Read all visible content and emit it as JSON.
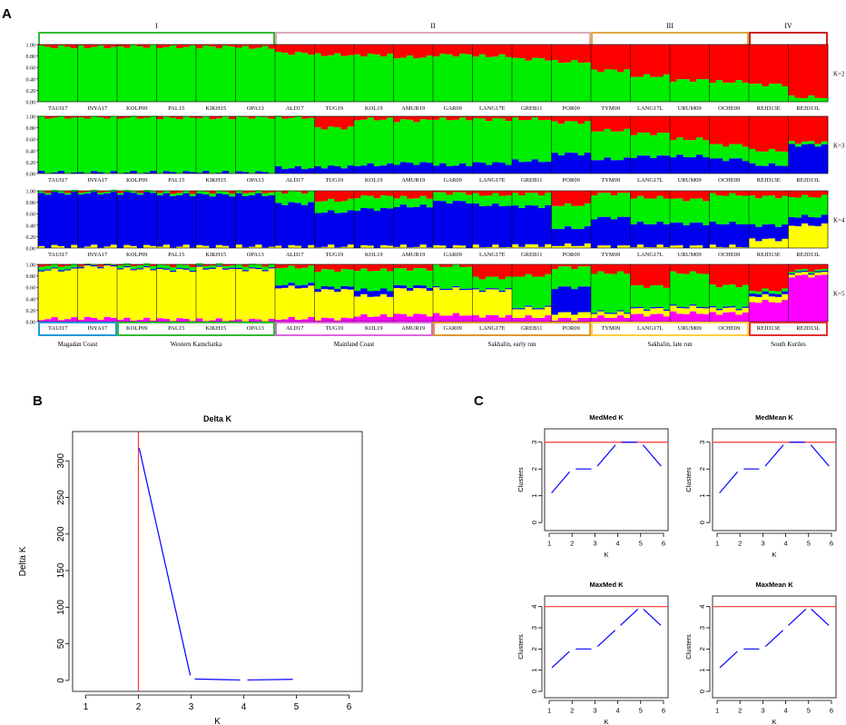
{
  "panels": {
    "a": "A",
    "b": "B",
    "c": "C"
  },
  "colors": {
    "red": "#ff0000",
    "green": "#00ee00",
    "blue": "#0000ee",
    "yellow": "#ffff00",
    "magenta": "#ff00ff",
    "refline": "#ff3333",
    "curve": "#0000ff"
  },
  "structure": {
    "populations": [
      "TAUI17",
      "INYA17",
      "KOLP09",
      "PAL15",
      "KIKH15",
      "OPA13",
      "ALD17",
      "TUG19",
      "KOL19",
      "AMUR19",
      "GAR09",
      "LANG17E",
      "GREB11",
      "POR09",
      "TYM09",
      "LANG17L",
      "URUM09",
      "OCHE09",
      "REJD13E",
      "REJD13L"
    ],
    "yticks": [
      "1.00",
      "0.80",
      "0.60",
      "0.40",
      "0.20",
      "0.00"
    ],
    "k_labels": [
      "K=2",
      "K=3",
      "K=4",
      "K=5"
    ],
    "groups_top": [
      {
        "label": "I",
        "start": 0,
        "end": 6,
        "color": "#33bb33"
      },
      {
        "label": "II",
        "start": 6,
        "end": 14,
        "color": "#ddaabb"
      },
      {
        "label": "III",
        "start": 14,
        "end": 18,
        "color": "#ddaa44"
      },
      {
        "label": "IV",
        "start": 18,
        "end": 20,
        "color": "#cc2222"
      }
    ],
    "groups_bottom": [
      {
        "label": "Magadan Coast",
        "start": 0,
        "end": 2,
        "color": "#2299dd"
      },
      {
        "label": "Western Kamchatka",
        "start": 2,
        "end": 6,
        "color": "#33bb33"
      },
      {
        "label": "Mainland Coast",
        "start": 6,
        "end": 10,
        "color": "#dd66dd"
      },
      {
        "label": "Sakhalin, early run",
        "start": 10,
        "end": 14,
        "color": "#dd9933"
      },
      {
        "label": "Sakhalin, late run",
        "start": 14,
        "end": 18,
        "color": "#ffcc44"
      },
      {
        "label": "South Kuriles",
        "start": 18,
        "end": 20,
        "color": "#dd3333"
      }
    ]
  },
  "chart_data": [
    {
      "type": "bar",
      "title": "K=2",
      "categories": [
        "TAUI17",
        "INYA17",
        "KOLP09",
        "PAL15",
        "KIKH15",
        "OPA13",
        "ALD17",
        "TUG19",
        "KOL19",
        "AMUR19",
        "GAR09",
        "LANG17E",
        "GREB11",
        "POR09",
        "TYM09",
        "LANG17L",
        "URUM09",
        "OCHE09",
        "REJD13E",
        "REJD13L"
      ],
      "series": [
        {
          "color": "#00ee00",
          "values": [
            0.96,
            0.96,
            0.97,
            0.96,
            0.96,
            0.95,
            0.85,
            0.82,
            0.82,
            0.78,
            0.82,
            0.8,
            0.75,
            0.7,
            0.55,
            0.45,
            0.38,
            0.35,
            0.3,
            0.08
          ]
        },
        {
          "color": "#ff0000",
          "values": [
            0.04,
            0.04,
            0.03,
            0.04,
            0.04,
            0.05,
            0.15,
            0.18,
            0.18,
            0.22,
            0.18,
            0.2,
            0.25,
            0.3,
            0.45,
            0.55,
            0.62,
            0.65,
            0.7,
            0.92
          ]
        }
      ]
    },
    {
      "type": "bar",
      "title": "K=3",
      "categories": [
        "TAUI17",
        "INYA17",
        "KOLP09",
        "PAL15",
        "KIKH15",
        "OPA13",
        "ALD17",
        "TUG19",
        "KOL19",
        "AMUR19",
        "GAR09",
        "LANG17E",
        "GREB11",
        "POR09",
        "TYM09",
        "LANG17L",
        "URUM09",
        "OCHE09",
        "REJD13E",
        "REJD13L"
      ],
      "series": [
        {
          "color": "#0000ee",
          "values": [
            0.02,
            0.02,
            0.02,
            0.02,
            0.02,
            0.02,
            0.1,
            0.12,
            0.15,
            0.18,
            0.15,
            0.18,
            0.22,
            0.35,
            0.25,
            0.3,
            0.3,
            0.25,
            0.15,
            0.5
          ]
        },
        {
          "color": "#00ee00",
          "values": [
            0.96,
            0.96,
            0.96,
            0.95,
            0.95,
            0.96,
            0.88,
            0.68,
            0.8,
            0.75,
            0.8,
            0.77,
            0.73,
            0.55,
            0.5,
            0.4,
            0.3,
            0.25,
            0.25,
            0.05
          ]
        },
        {
          "color": "#ff0000",
          "values": [
            0.02,
            0.02,
            0.02,
            0.03,
            0.03,
            0.02,
            0.02,
            0.2,
            0.05,
            0.07,
            0.05,
            0.05,
            0.05,
            0.1,
            0.25,
            0.3,
            0.4,
            0.5,
            0.6,
            0.45
          ]
        }
      ]
    },
    {
      "type": "bar",
      "title": "K=4",
      "categories": [
        "TAUI17",
        "INYA17",
        "KOLP09",
        "PAL15",
        "KIKH15",
        "OPA13",
        "ALD17",
        "TUG19",
        "KOL19",
        "AMUR19",
        "GAR09",
        "LANG17E",
        "GREB11",
        "POR09",
        "TYM09",
        "LANG17L",
        "URUM09",
        "OCHE09",
        "REJD13E",
        "REJD13L"
      ],
      "series": [
        {
          "color": "#ffff00",
          "values": [
            0.03,
            0.03,
            0.03,
            0.03,
            0.03,
            0.03,
            0.03,
            0.03,
            0.03,
            0.03,
            0.03,
            0.03,
            0.05,
            0.05,
            0.03,
            0.03,
            0.03,
            0.03,
            0.15,
            0.4
          ]
        },
        {
          "color": "#0000ee",
          "values": [
            0.93,
            0.93,
            0.93,
            0.9,
            0.9,
            0.9,
            0.75,
            0.6,
            0.65,
            0.7,
            0.78,
            0.72,
            0.68,
            0.3,
            0.5,
            0.4,
            0.4,
            0.4,
            0.25,
            0.15
          ]
        },
        {
          "color": "#00ee00",
          "values": [
            0.03,
            0.03,
            0.03,
            0.04,
            0.05,
            0.05,
            0.2,
            0.2,
            0.22,
            0.15,
            0.15,
            0.18,
            0.22,
            0.4,
            0.42,
            0.45,
            0.42,
            0.5,
            0.5,
            0.35
          ]
        },
        {
          "color": "#ff0000",
          "values": [
            0.01,
            0.01,
            0.01,
            0.03,
            0.02,
            0.02,
            0.02,
            0.17,
            0.1,
            0.12,
            0.04,
            0.07,
            0.05,
            0.25,
            0.05,
            0.12,
            0.15,
            0.07,
            0.1,
            0.1
          ]
        }
      ]
    },
    {
      "type": "bar",
      "title": "K=5",
      "categories": [
        "TAUI17",
        "INYA17",
        "KOLP09",
        "PAL15",
        "KIKH15",
        "OPA13",
        "ALD17",
        "TUG19",
        "KOL19",
        "AMUR19",
        "GAR09",
        "LANG17E",
        "GREB11",
        "POR09",
        "TYM09",
        "LANG17L",
        "URUM09",
        "OCHE09",
        "REJD13E",
        "REJD13L"
      ],
      "series": [
        {
          "color": "#ff00ff",
          "values": [
            0.05,
            0.06,
            0.04,
            0.04,
            0.03,
            0.03,
            0.05,
            0.05,
            0.1,
            0.12,
            0.12,
            0.1,
            0.08,
            0.05,
            0.08,
            0.12,
            0.15,
            0.15,
            0.35,
            0.8
          ]
        },
        {
          "color": "#ffff00",
          "values": [
            0.85,
            0.9,
            0.88,
            0.86,
            0.9,
            0.88,
            0.55,
            0.5,
            0.35,
            0.45,
            0.45,
            0.45,
            0.15,
            0.1,
            0.07,
            0.1,
            0.1,
            0.08,
            0.1,
            0.05
          ]
        },
        {
          "color": "#0000ee",
          "values": [
            0.02,
            0.02,
            0.02,
            0.02,
            0.02,
            0.02,
            0.05,
            0.05,
            0.1,
            0.05,
            0.02,
            0.02,
            0.02,
            0.45,
            0.02,
            0.02,
            0.02,
            0.02,
            0.05,
            0.02
          ]
        },
        {
          "color": "#00ee00",
          "values": [
            0.06,
            0.01,
            0.05,
            0.06,
            0.04,
            0.06,
            0.3,
            0.3,
            0.35,
            0.3,
            0.38,
            0.2,
            0.55,
            0.35,
            0.68,
            0.38,
            0.58,
            0.38,
            0.05,
            0.03
          ]
        },
        {
          "color": "#ff0000",
          "values": [
            0.02,
            0.01,
            0.01,
            0.02,
            0.01,
            0.01,
            0.05,
            0.1,
            0.1,
            0.08,
            0.03,
            0.23,
            0.2,
            0.05,
            0.15,
            0.38,
            0.15,
            0.37,
            0.45,
            0.1
          ]
        }
      ]
    },
    {
      "type": "line",
      "title": "Delta K",
      "xlabel": "K",
      "ylabel": "Delta K",
      "xlim": [
        0.75,
        6.25
      ],
      "ylim": [
        -15,
        340
      ],
      "xticks": [
        1,
        2,
        3,
        4,
        5,
        6
      ],
      "yticks": [
        0,
        50,
        100,
        150,
        200,
        250,
        300
      ],
      "x": [
        2,
        3,
        4,
        5
      ],
      "y": [
        322,
        2,
        0.5,
        1.5
      ],
      "vline": 2
    },
    {
      "type": "line",
      "title": "MedMed K",
      "xlabel": "K",
      "ylabel": "Clusters",
      "xlim": [
        0.8,
        6.2
      ],
      "ylim": [
        -0.3,
        3.5
      ],
      "xticks": [
        1,
        2,
        3,
        4,
        5,
        6
      ],
      "yticks": [
        0,
        1,
        2,
        3
      ],
      "x": [
        1,
        2,
        3,
        4,
        5,
        6
      ],
      "y": [
        1,
        2,
        2,
        3,
        3,
        2
      ],
      "hline": 3
    },
    {
      "type": "line",
      "title": "MedMean K",
      "xlabel": "K",
      "ylabel": "Clusters",
      "xlim": [
        0.8,
        6.2
      ],
      "ylim": [
        -0.3,
        3.5
      ],
      "xticks": [
        1,
        2,
        3,
        4,
        5,
        6
      ],
      "yticks": [
        0,
        1,
        2,
        3
      ],
      "x": [
        1,
        2,
        3,
        4,
        5,
        6
      ],
      "y": [
        1,
        2,
        2,
        3,
        3,
        2
      ],
      "hline": 3
    },
    {
      "type": "line",
      "title": "MaxMed K",
      "xlabel": "K",
      "ylabel": "Clusters",
      "xlim": [
        0.8,
        6.2
      ],
      "ylim": [
        -0.3,
        4.5
      ],
      "xticks": [
        1,
        2,
        3,
        4,
        5,
        6
      ],
      "yticks": [
        0,
        1,
        2,
        3,
        4
      ],
      "x": [
        1,
        2,
        3,
        4,
        5,
        6
      ],
      "y": [
        1,
        2,
        2,
        3,
        4,
        3
      ],
      "hline": 4
    },
    {
      "type": "line",
      "title": "MaxMean K",
      "xlabel": "K",
      "ylabel": "Clusters",
      "xlim": [
        0.8,
        6.2
      ],
      "ylim": [
        -0.3,
        4.5
      ],
      "xticks": [
        1,
        2,
        3,
        4,
        5,
        6
      ],
      "yticks": [
        0,
        1,
        2,
        3,
        4
      ],
      "x": [
        1,
        2,
        3,
        4,
        5,
        6
      ],
      "y": [
        1,
        2,
        2,
        3,
        4,
        3
      ],
      "hline": 4
    }
  ]
}
